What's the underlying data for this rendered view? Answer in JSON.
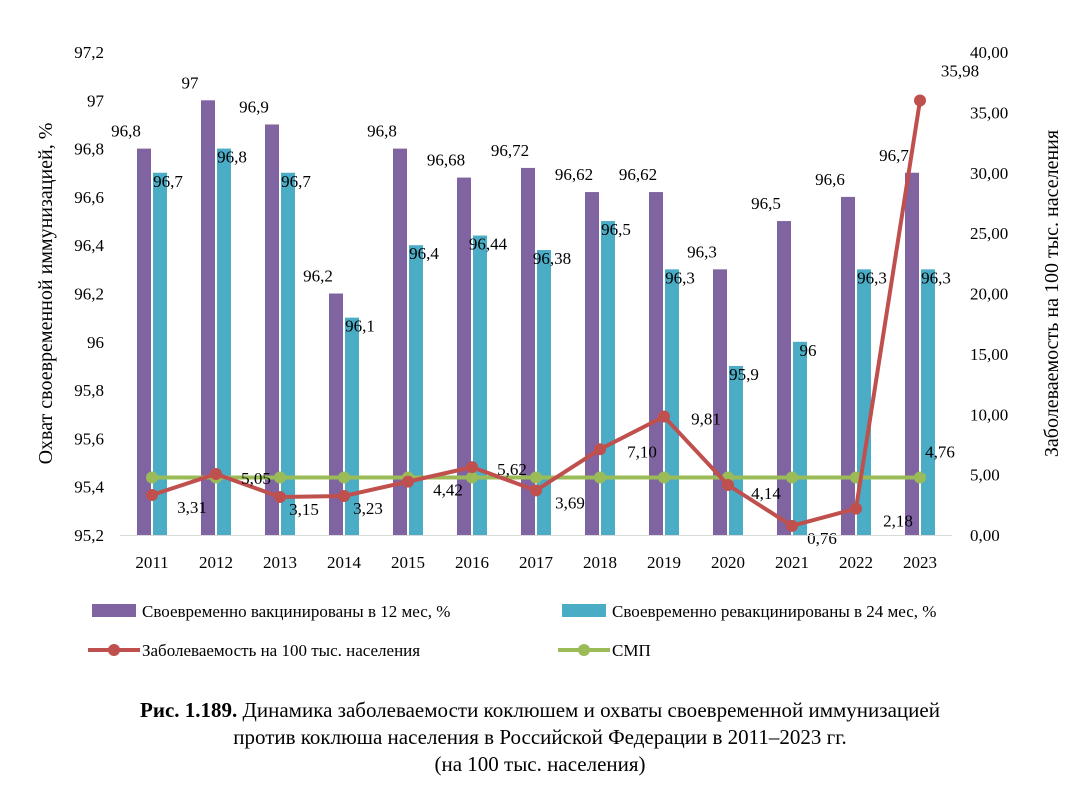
{
  "chart_data": {
    "type": "bar",
    "categories": [
      "2011",
      "2012",
      "2013",
      "2014",
      "2015",
      "2016",
      "2017",
      "2018",
      "2019",
      "2020",
      "2021",
      "2022",
      "2023"
    ],
    "series": [
      {
        "name": "Своевременно вакцинированы в 12 мес, %",
        "kind": "bar",
        "axis": "left",
        "color": "#8064A2",
        "values": [
          96.8,
          97,
          96.9,
          96.2,
          96.8,
          96.68,
          96.72,
          96.62,
          96.62,
          96.3,
          96.5,
          96.6,
          96.7
        ],
        "labels": [
          "96,8",
          "97",
          "96,9",
          "96,2",
          "96,8",
          "96,68",
          "96,72",
          "96,62",
          "96,62",
          "96,3",
          "96,5",
          "96,6",
          "96,7"
        ]
      },
      {
        "name": "Своевременно ревакцинированы в 24 мес, %",
        "kind": "bar",
        "axis": "left",
        "color": "#4BACC6",
        "values": [
          96.7,
          96.8,
          96.7,
          96.1,
          96.4,
          96.44,
          96.38,
          96.5,
          96.3,
          95.9,
          96,
          96.3,
          96.3
        ],
        "labels": [
          "96,7",
          "96,8",
          "96,7",
          "96,1",
          "96,4",
          "96,44",
          "96,38",
          "96,5",
          "96,3",
          "95,9",
          "96",
          "96,3",
          "96,3"
        ]
      },
      {
        "name": "Заболеваемость на 100 тыс. населения",
        "kind": "line",
        "axis": "right",
        "color": "#C0504D",
        "values": [
          3.31,
          5.05,
          3.15,
          3.23,
          4.42,
          5.62,
          3.69,
          7.1,
          9.81,
          4.14,
          0.76,
          2.18,
          35.98
        ],
        "labels": [
          "3,31",
          "5,05",
          "3,15",
          "3,23",
          "4,42",
          "5,62",
          "3,69",
          "7,10",
          "9,81",
          "4,14",
          "0,76",
          "2,18",
          "35,98"
        ]
      },
      {
        "name": "СМП",
        "kind": "line",
        "axis": "right",
        "color": "#9BBB59",
        "values": [
          4.76,
          4.76,
          4.76,
          4.76,
          4.76,
          4.76,
          4.76,
          4.76,
          4.76,
          4.76,
          4.76,
          4.76,
          4.76
        ],
        "labels": [
          "4,76"
        ]
      }
    ],
    "y_left": {
      "label": "Охват своевременной иммунизацией, %",
      "range": [
        95.2,
        97.2
      ],
      "ticks": [
        95.2,
        95.4,
        95.6,
        95.8,
        96,
        96.2,
        96.4,
        96.6,
        96.8,
        97,
        97.2
      ],
      "tick_labels": [
        "95,2",
        "95,4",
        "95,6",
        "95,8",
        "96",
        "96,2",
        "96,4",
        "96,6",
        "96,8",
        "97",
        "97,2"
      ]
    },
    "y_right": {
      "label": "Заболеваемость на 100 тыс. населения",
      "range": [
        0,
        40
      ],
      "ticks": [
        0,
        5,
        10,
        15,
        20,
        25,
        30,
        35,
        40
      ],
      "tick_labels": [
        "0,00",
        "5,00",
        "10,00",
        "15,00",
        "20,00",
        "25,00",
        "30,00",
        "35,00",
        "40,00"
      ]
    },
    "grid": false,
    "legend": "bottom"
  },
  "caption": {
    "prefix": "Рис. 1.189.",
    "line1": " Динамика заболеваемости коклюшем и охваты своевременной иммунизацией",
    "line2": "против коклюша населения в Российской Федерации в 2011–2023 гг.",
    "line3": "(на 100 тыс. населения)"
  }
}
